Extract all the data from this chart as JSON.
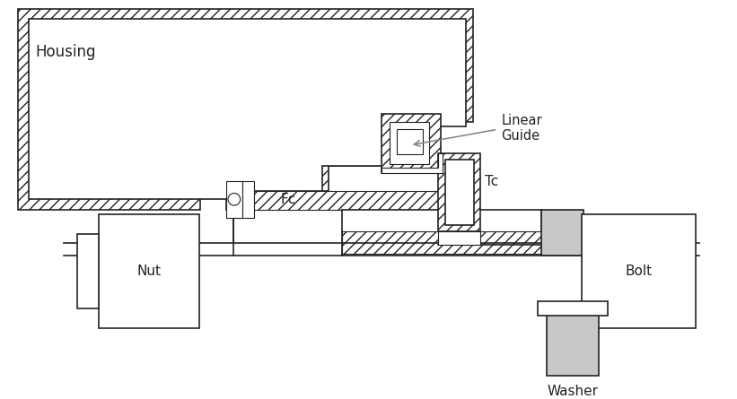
{
  "bg_color": "#ffffff",
  "lc": "#222222",
  "gray_fill": "#c8c8c8",
  "label_housing": "Housing",
  "label_nut": "Nut",
  "label_bolt": "Bolt",
  "label_washer": "Washer",
  "label_fc": "Fc",
  "label_tc": "Tc",
  "label_linear_guide": "Linear\nGuide",
  "figsize": [
    8.21,
    4.45
  ],
  "dpi": 100
}
